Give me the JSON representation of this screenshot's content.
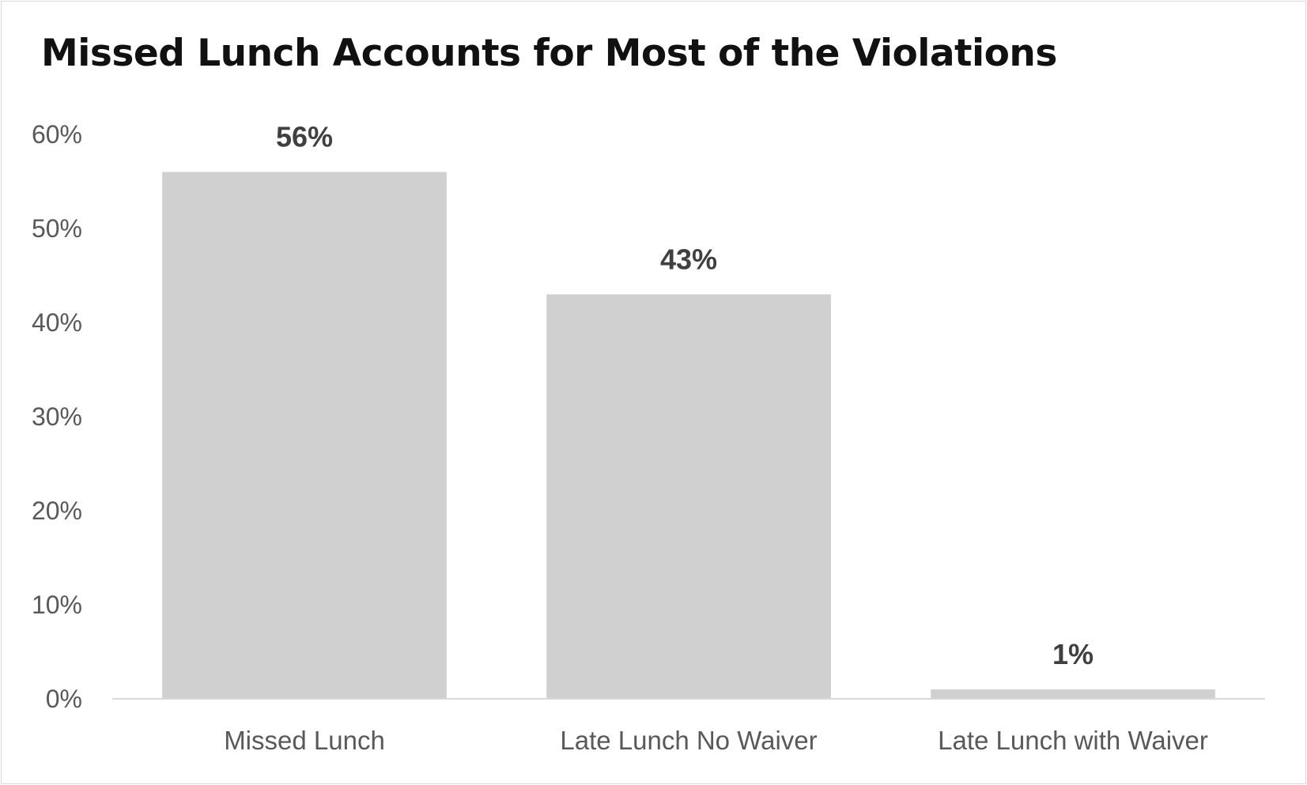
{
  "chart_data": {
    "type": "bar",
    "title": "Missed Lunch Accounts for Most of the Violations",
    "xlabel": "",
    "ylabel": "",
    "categories": [
      "Missed Lunch",
      "Late Lunch No Waiver",
      "Late Lunch with Waiver"
    ],
    "values": [
      56,
      43,
      1
    ],
    "data_labels": [
      "56%",
      "43%",
      "1%"
    ],
    "ylim": [
      0,
      60
    ],
    "y_ticks": [
      0,
      10,
      20,
      30,
      40,
      50,
      60
    ],
    "y_tick_labels": [
      "0%",
      "10%",
      "20%",
      "30%",
      "40%",
      "50%",
      "60%"
    ],
    "bar_color": "#d0d0d0",
    "axis_color": "#d9d9d9",
    "grid": false,
    "legend": "none"
  }
}
